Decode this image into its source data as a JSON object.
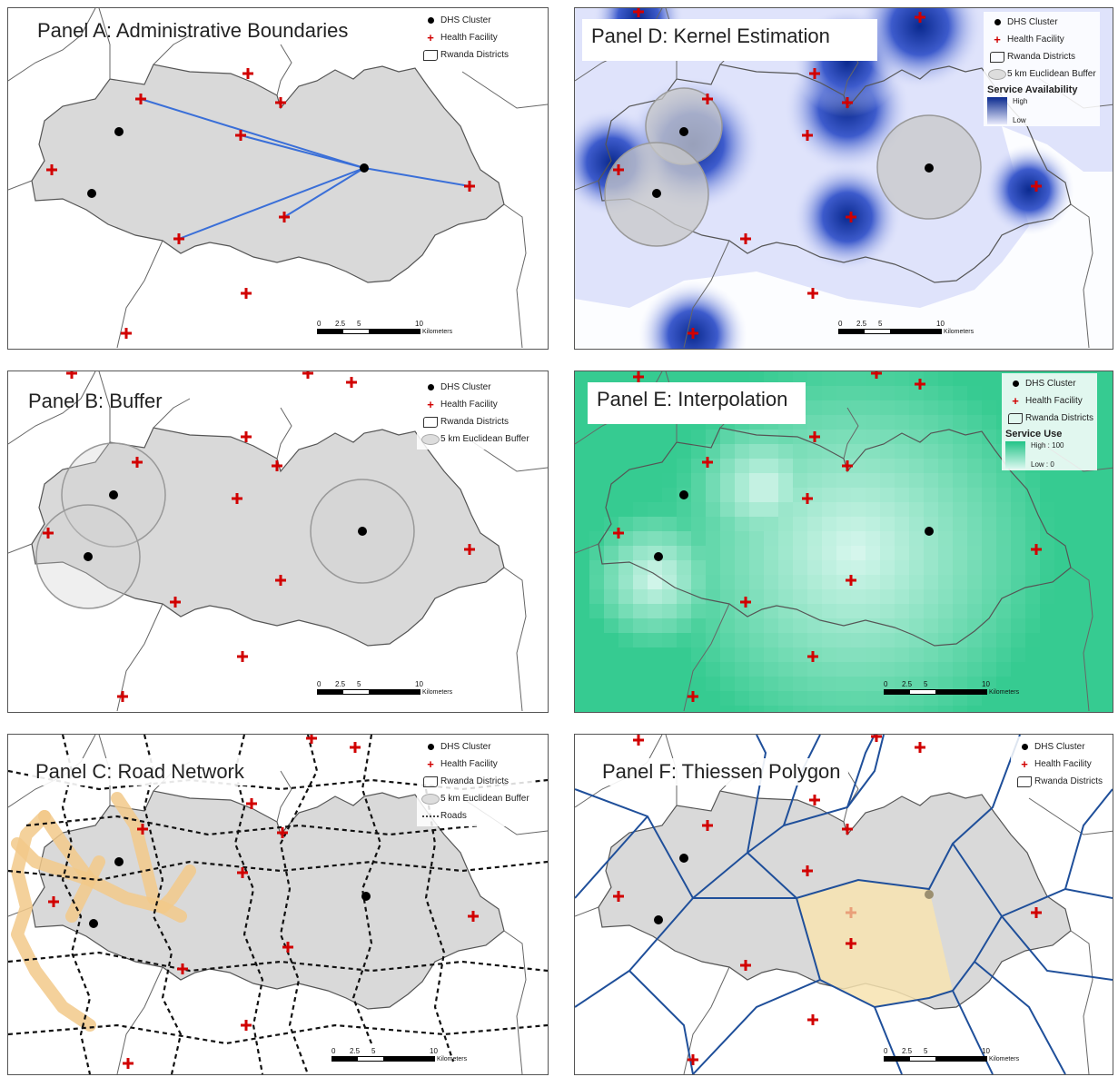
{
  "legend": {
    "dhs_cluster": "DHS Cluster",
    "health_facility": "Health Facility",
    "rwanda_districts": "Rwanda Districts",
    "buffer": "5 km Euclidean Buffer",
    "roads": "Roads"
  },
  "scale": {
    "t0": "0",
    "t1": "2.5",
    "t2": "5",
    "t3": "10",
    "unit": "Kilometers"
  },
  "panels": {
    "a": {
      "title": "Panel A: Administrative  Boundaries"
    },
    "b": {
      "title": "Panel B: Buffer"
    },
    "c": {
      "title": "Panel C: Road Network"
    },
    "d": {
      "title": "Panel D: Kernel Estimation",
      "ramp_title": "Service Availability",
      "ramp_high": "High",
      "ramp_low": "Low",
      "ramp_high_color": "#0b2a8f",
      "ramp_low_color": "#e8eafc"
    },
    "e": {
      "title": "Panel E: Interpolation",
      "ramp_title": "Service Use",
      "ramp_high": "High : 100",
      "ramp_low": "Low : 0",
      "ramp_high_color": "#22c387",
      "ramp_low_color": "#d8f7ee"
    },
    "f": {
      "title": "Panel F: Thiessen Polygon"
    }
  },
  "colors": {
    "district_fill": "#d9d9d9",
    "district_stroke": "#555555",
    "facility": "#d10000",
    "line_blue": "#3a6fd8",
    "thiessen": "#1f4f9a",
    "highlight": "#f7e3b0",
    "road_buffer": "#f2c98a"
  }
}
